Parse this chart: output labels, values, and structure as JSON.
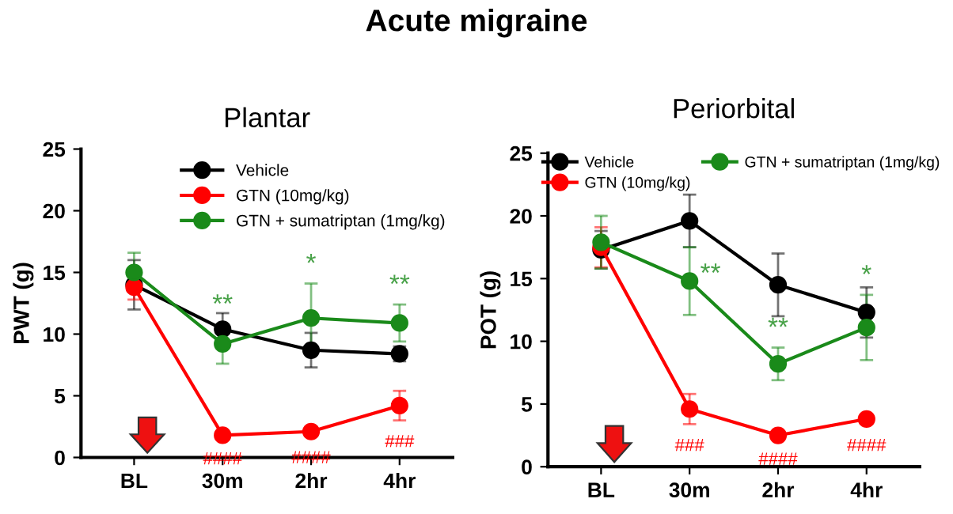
{
  "chart_data": [
    {
      "type": "line",
      "title": "Plantar",
      "ylabel": "PWT (g)",
      "categories": [
        "BL",
        "30m",
        "2hr",
        "4hr"
      ],
      "ylim": [
        0,
        25
      ],
      "yticks": [
        0,
        5,
        10,
        15,
        20,
        25
      ],
      "marker": "circle",
      "legend": "top right",
      "grid": false,
      "series": [
        {
          "name": "Vehicle",
          "color": "#000000",
          "values": [
            14.0,
            10.4,
            8.7,
            8.4
          ],
          "errors": [
            2.0,
            1.3,
            1.4,
            0.6
          ]
        },
        {
          "name": "GTN (10mg/kg)",
          "color": "#ff0000",
          "values": [
            13.8,
            1.8,
            2.1,
            4.2
          ],
          "errors": [
            1.0,
            0.2,
            0.4,
            1.2
          ],
          "value_labels": [
            null,
            "####",
            "####",
            "###"
          ]
        },
        {
          "name": "GTN + sumatriptan (1mg/kg)",
          "color": "#1a8a1a",
          "values": [
            15.0,
            9.2,
            11.3,
            10.9
          ],
          "errors": [
            1.6,
            1.6,
            2.8,
            1.5
          ],
          "value_labels": [
            null,
            "**",
            "*",
            "**"
          ]
        }
      ],
      "annotations": [
        "Acute migraine"
      ]
    },
    {
      "type": "line",
      "title": "Periorbital",
      "ylabel": "POT (g)",
      "categories": [
        "BL",
        "30m",
        "2hr",
        "4hr"
      ],
      "ylim": [
        0,
        25
      ],
      "yticks": [
        0,
        5,
        10,
        15,
        20,
        25
      ],
      "marker": "circle",
      "legend": "top",
      "grid": false,
      "series": [
        {
          "name": "Vehicle",
          "color": "#000000",
          "values": [
            17.3,
            19.6,
            14.5,
            12.3
          ],
          "errors": [
            1.5,
            2.1,
            2.5,
            2.0
          ]
        },
        {
          "name": "GTN (10mg/kg)",
          "color": "#ff0000",
          "values": [
            17.5,
            4.6,
            2.5,
            3.8
          ],
          "errors": [
            1.6,
            1.2,
            0.2,
            0.4
          ],
          "value_labels": [
            null,
            "###",
            "####",
            "####"
          ]
        },
        {
          "name": "GTN + sumatriptan (1mg/kg)",
          "color": "#1a8a1a",
          "values": [
            17.9,
            14.8,
            8.2,
            11.1
          ],
          "errors": [
            2.1,
            2.7,
            1.3,
            2.6
          ],
          "value_labels": [
            null,
            "**",
            "**",
            "*"
          ]
        }
      ]
    }
  ]
}
